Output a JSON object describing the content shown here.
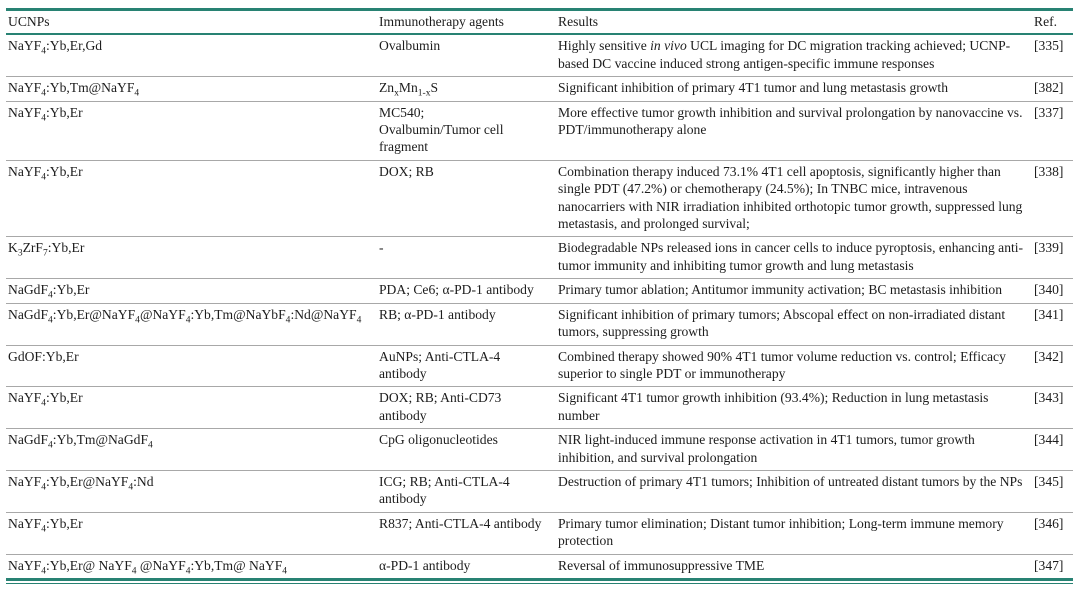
{
  "colors": {
    "rule_teal": "#288273",
    "row_line": "#a8a8a8",
    "text": "#1c1c1c",
    "bg": "#ffffff"
  },
  "table": {
    "columns": [
      {
        "key": "ucnp",
        "label": "UCNPs"
      },
      {
        "key": "agents",
        "label": "Immunotherapy agents"
      },
      {
        "key": "results",
        "label": "Results"
      },
      {
        "key": "ref",
        "label": "Ref."
      }
    ],
    "rows": [
      {
        "ucnp": "NaYF~4~:Yb,Er,Gd",
        "agents": "Ovalbumin",
        "results": "Highly sensitive *in vivo* UCL imaging for DC migration tracking achieved; UCNP-based DC vaccine induced strong antigen-specific immune responses",
        "ref": "[335]"
      },
      {
        "ucnp": "NaYF~4~:Yb,Tm@NaYF~4~",
        "agents": "Zn~x~Mn~1-x~S",
        "results": "Significant inhibition of primary 4T1 tumor and lung metastasis growth",
        "ref": "[382]"
      },
      {
        "ucnp": "NaYF~4~:Yb,Er",
        "agents": "MC540;\nOvalbumin/Tumor cell fragment",
        "results": "More effective tumor growth inhibition and survival prolongation by nanovaccine vs. PDT/immunotherapy alone",
        "ref": "[337]"
      },
      {
        "ucnp": "NaYF~4~:Yb,Er",
        "agents": "DOX; RB",
        "results": "Combination therapy induced 73.1% 4T1 cell apoptosis, significantly higher than single PDT (47.2%) or chemotherapy (24.5%); In TNBC mice, intravenous nanocarriers with NIR irradiation inhibited orthotopic tumor growth, suppressed lung metastasis, and prolonged survival;",
        "ref": "[338]"
      },
      {
        "ucnp": "K~3~ZrF~7~:Yb,Er",
        "agents": "-",
        "results": "Biodegradable NPs released ions in cancer cells to induce pyroptosis, enhancing anti-tumor immunity and inhibiting tumor growth and lung metastasis",
        "ref": "[339]"
      },
      {
        "ucnp": "NaGdF~4~:Yb,Er",
        "agents": "PDA; Ce6; α-PD-1 antibody",
        "results": "Primary tumor ablation; Antitumor immunity activation; BC metastasis inhibition",
        "ref": "[340]"
      },
      {
        "ucnp": "NaGdF~4~:Yb,Er@NaYF~4~@NaYF~4~:Yb,Tm@NaYbF~4~:Nd@NaYF~4~",
        "agents": "RB; α-PD-1 antibody",
        "results": "Significant inhibition of primary tumors; Abscopal effect on non-irradiated distant tumors, suppressing growth",
        "ref": "[341]"
      },
      {
        "ucnp": "GdOF:Yb,Er",
        "agents": "AuNPs; Anti-CTLA-4 antibody",
        "results": "Combined therapy showed 90% 4T1 tumor volume reduction vs. control; Efficacy superior to single PDT or immunotherapy",
        "ref": "[342]"
      },
      {
        "ucnp": "NaYF~4~:Yb,Er",
        "agents": "DOX; RB; Anti-CD73 antibody",
        "results": "Significant 4T1 tumor growth inhibition (93.4%); Reduction in lung metastasis number",
        "ref": "[343]"
      },
      {
        "ucnp": "NaGdF~4~:Yb,Tm@NaGdF~4~",
        "agents": "CpG oligonucleotides",
        "results": "NIR light-induced immune response activation in 4T1 tumors, tumor growth inhibition, and survival prolongation",
        "ref": "[344]"
      },
      {
        "ucnp": "NaYF~4~:Yb,Er@NaYF~4~:Nd",
        "agents": "ICG; RB; Anti-CTLA-4 antibody",
        "results": "Destruction of primary 4T1 tumors; Inhibition of untreated distant tumors by the NPs",
        "ref": "[345]"
      },
      {
        "ucnp": "NaYF~4~:Yb,Er",
        "agents": "R837; Anti-CTLA-4 antibody",
        "results": "Primary tumor elimination; Distant tumor inhibition; Long-term immune memory protection",
        "ref": "[346]"
      },
      {
        "ucnp": "NaYF~4~:Yb,Er@ NaYF~4~ @NaYF~4~:Yb,Tm@ NaYF~4~",
        "agents": "α-PD-1 antibody",
        "results": "Reversal of immunosuppressive TME",
        "ref": "[347]"
      }
    ]
  }
}
